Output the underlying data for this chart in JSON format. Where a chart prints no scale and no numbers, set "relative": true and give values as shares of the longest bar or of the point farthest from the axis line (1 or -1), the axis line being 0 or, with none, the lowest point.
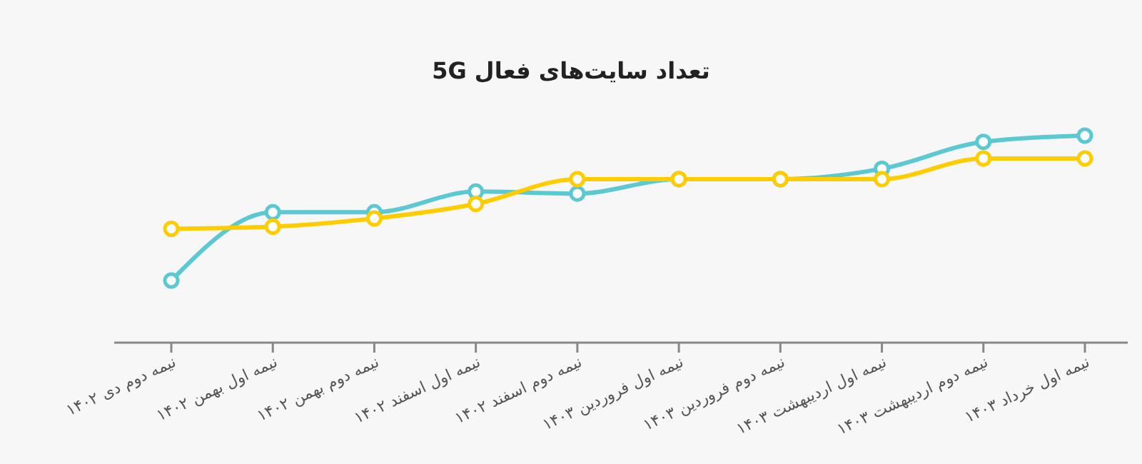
{
  "chart_data": {
    "type": "line",
    "title": "تعداد سایت‌های فعال 5G",
    "relative": true,
    "marker": "circle",
    "line_style": "solid",
    "categories": [
      "نیمه دوم دی ۱۴۰۲",
      "نیمه اول بهمن ۱۴۰۲",
      "نیمه دوم بهمن ۱۴۰۲",
      "نیمه اول اسفند ۱۴۰۲",
      "نیمه دوم اسفند ۱۴۰۲",
      "نیمه اول فروردین ۱۴۰۳",
      "نیمه دوم فروردین ۱۴۰۳",
      "نیمه اول اردیبهشت ۱۴۰۳",
      "نیمه دوم اردیبهشت ۱۴۰۳",
      "نیمه اول خرداد ۱۴۰۳"
    ],
    "series": [
      {
        "color": "#5bc8d2",
        "values": [
          0.3,
          0.63,
          0.63,
          0.73,
          0.72,
          0.79,
          0.79,
          0.84,
          0.97,
          1
        ]
      },
      {
        "color": "#ffcc00",
        "values": [
          0.55,
          0.56,
          0.6,
          0.67,
          0.79,
          0.79,
          0.79,
          0.79,
          0.89,
          0.89
        ]
      }
    ]
  }
}
